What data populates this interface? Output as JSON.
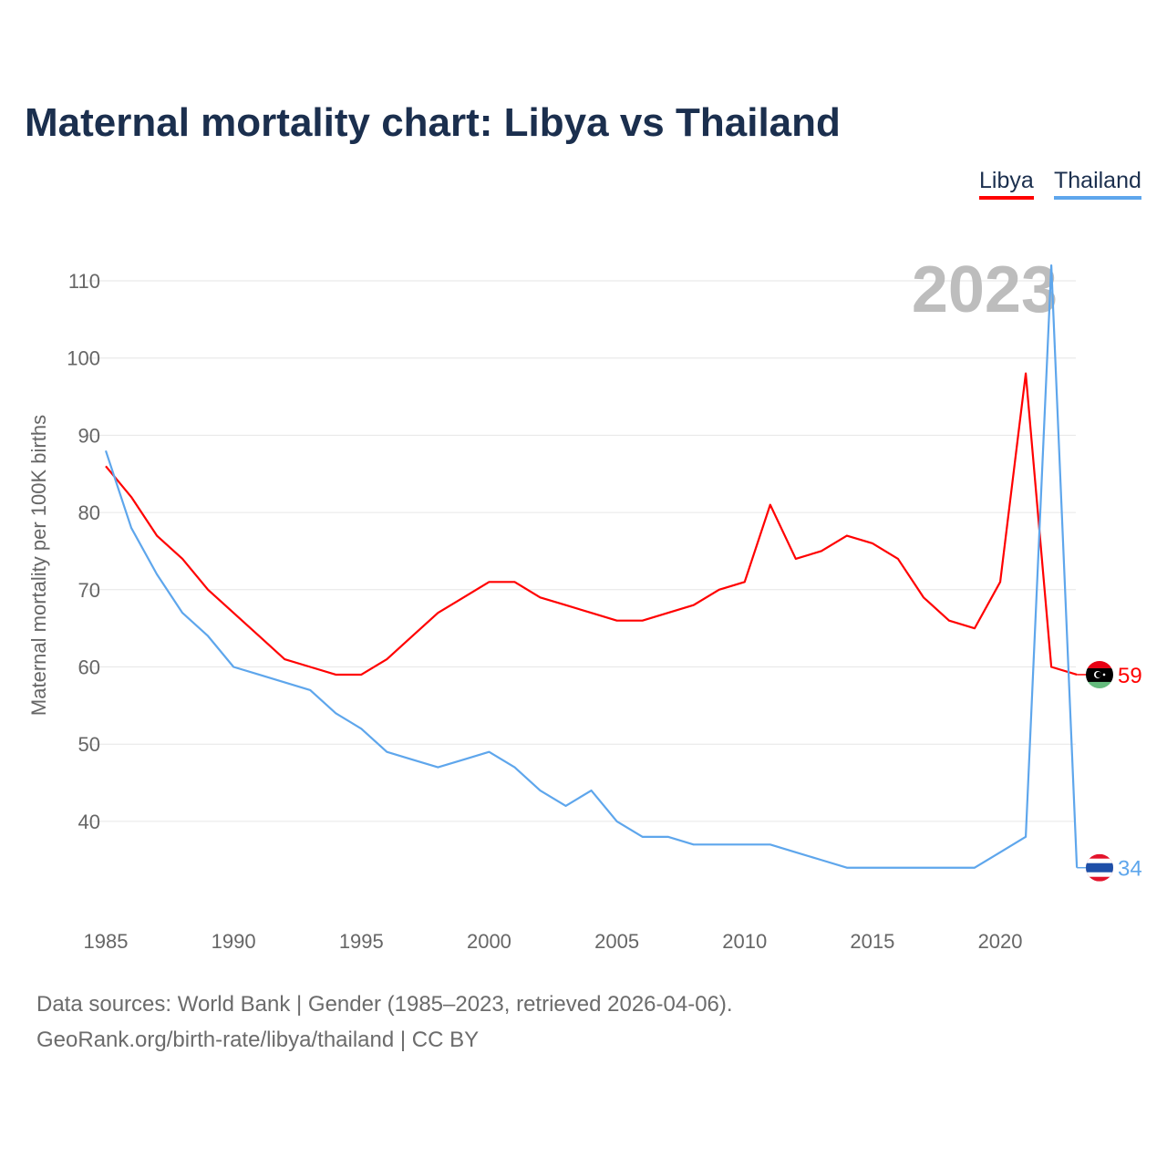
{
  "title": "Maternal mortality chart: Libya vs Thailand",
  "footer": {
    "line1": "Data sources: World Bank | Gender (1985–2023, retrieved 2026-04-06).",
    "line2": "GeoRank.org/birth-rate/libya/thailand | CC BY"
  },
  "chart_data": {
    "type": "line",
    "title": "Maternal mortality chart: Libya vs Thailand",
    "xlabel": "",
    "ylabel": "Maternal mortality per 100K births",
    "year_watermark": "2023",
    "x": [
      1985,
      1986,
      1987,
      1988,
      1989,
      1990,
      1991,
      1992,
      1993,
      1994,
      1995,
      1996,
      1997,
      1998,
      1999,
      2000,
      2001,
      2002,
      2003,
      2004,
      2005,
      2006,
      2007,
      2008,
      2009,
      2010,
      2011,
      2012,
      2013,
      2014,
      2015,
      2016,
      2017,
      2018,
      2019,
      2020,
      2021,
      2022,
      2023
    ],
    "xticks": [
      "1985",
      "1990",
      "1995",
      "2000",
      "2005",
      "2010",
      "2015",
      "2020"
    ],
    "yticks": [
      "40",
      "50",
      "60",
      "70",
      "80",
      "90",
      "100",
      "110"
    ],
    "ylim": [
      28,
      114
    ],
    "grid": true,
    "legend_position": "top-right",
    "series": [
      {
        "name": "Libya",
        "color": "#ff0000",
        "end_label": "59",
        "values": [
          86,
          82,
          77,
          74,
          70,
          67,
          64,
          61,
          60,
          59,
          59,
          61,
          64,
          67,
          69,
          71,
          71,
          69,
          68,
          67,
          66,
          66,
          67,
          68,
          70,
          71,
          81,
          74,
          75,
          77,
          76,
          74,
          69,
          66,
          65,
          71,
          98,
          60,
          59
        ]
      },
      {
        "name": "Thailand",
        "color": "#5ea6ec",
        "end_label": "34",
        "values": [
          88,
          78,
          72,
          67,
          64,
          60,
          59,
          58,
          57,
          54,
          52,
          49,
          48,
          47,
          48,
          49,
          47,
          44,
          42,
          44,
          40,
          38,
          38,
          37,
          37,
          37,
          37,
          36,
          35,
          34,
          34,
          34,
          34,
          34,
          34,
          36,
          38,
          112,
          34
        ]
      }
    ]
  }
}
